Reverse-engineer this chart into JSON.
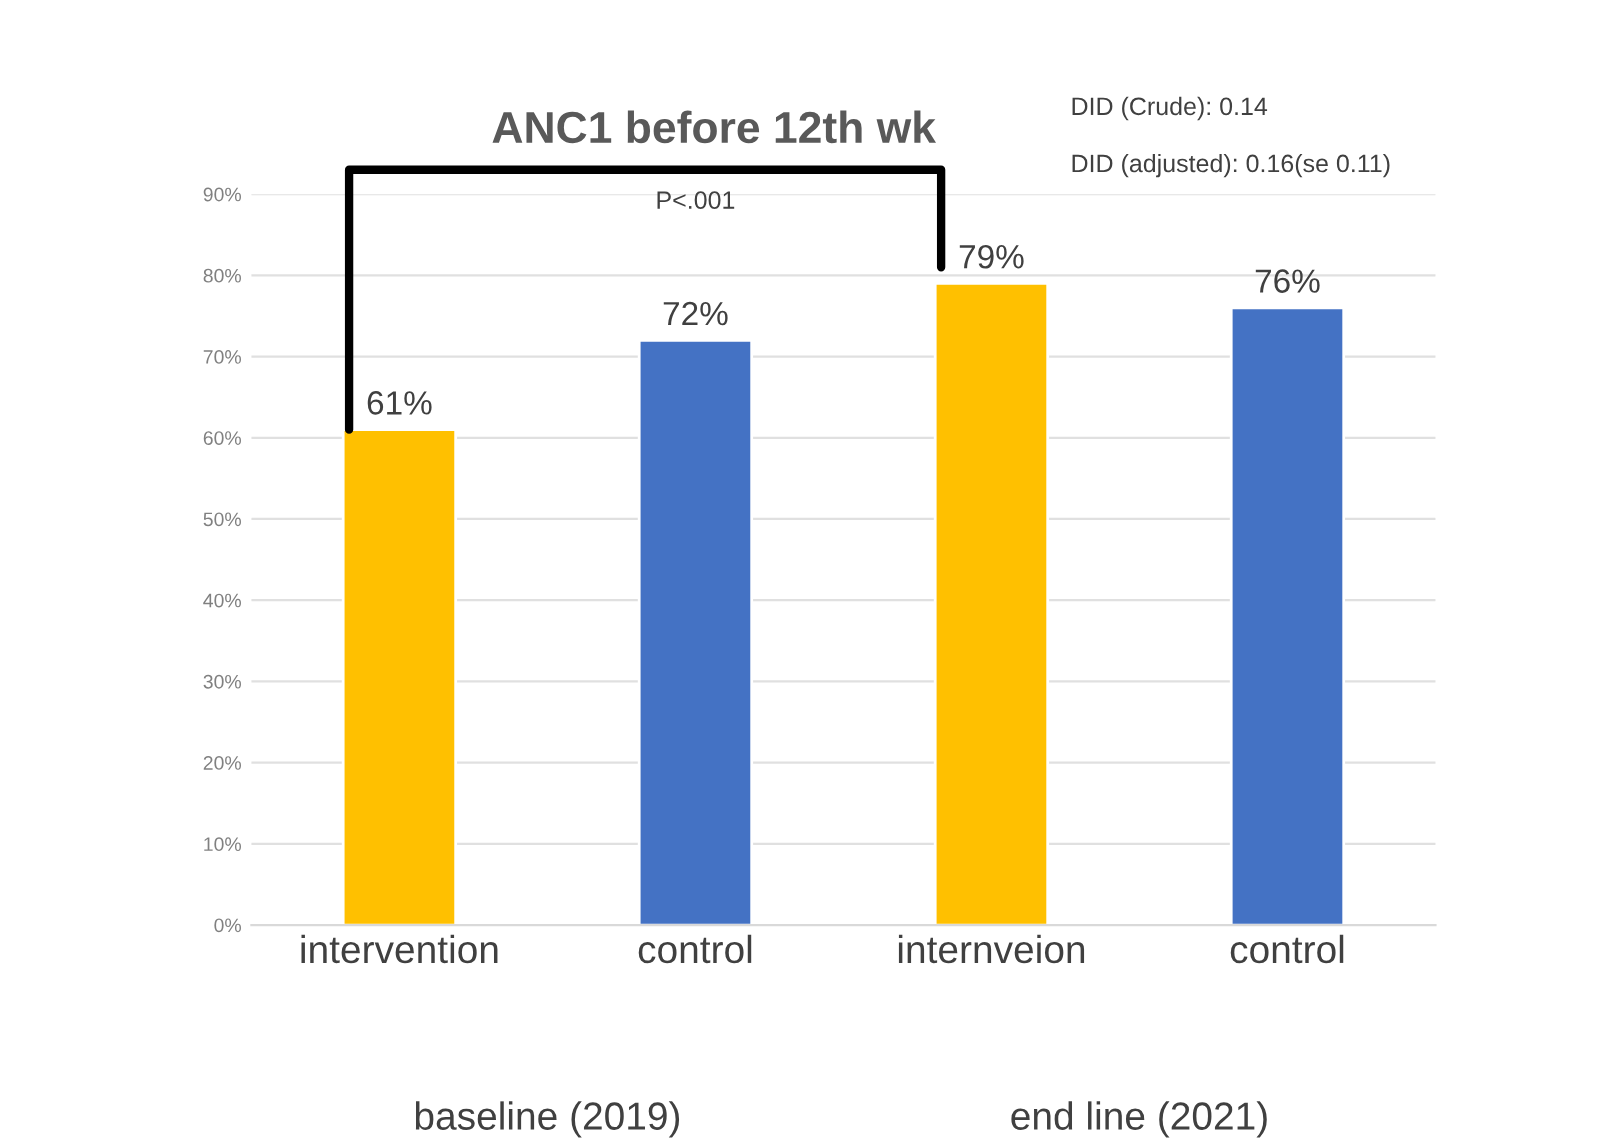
{
  "chart_data": {
    "type": "bar",
    "title": "ANC1 before 12th wk",
    "categories": [
      "intervention",
      "control",
      "internveion",
      "control"
    ],
    "values": [
      61,
      72,
      79,
      76
    ],
    "colors": [
      "#ffc000",
      "#4472c4",
      "#ffc000",
      "#4472c4"
    ],
    "value_labels": [
      "61%",
      "72%",
      "79%",
      "76%"
    ],
    "ylim": [
      0,
      90
    ],
    "yticks": [
      {
        "value": 0,
        "label": "0%"
      },
      {
        "value": 10,
        "label": "10%"
      },
      {
        "value": 20,
        "label": "20%"
      },
      {
        "value": 30,
        "label": "30%"
      },
      {
        "value": 40,
        "label": "40%"
      },
      {
        "value": 50,
        "label": "50%"
      },
      {
        "value": 60,
        "label": "60%"
      },
      {
        "value": 70,
        "label": "70%"
      },
      {
        "value": 80,
        "label": "80%"
      },
      {
        "value": 90,
        "label": "90%"
      }
    ],
    "grid": "y",
    "legend": false,
    "annotations": [
      "DID (Crude): 0.14",
      "DID (adjusted): 0.16(se 0.11)",
      "P<.001",
      "baseline (2019)",
      "end line (2021)"
    ]
  }
}
